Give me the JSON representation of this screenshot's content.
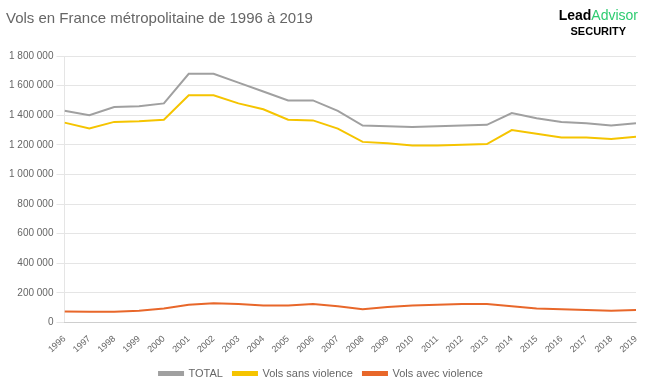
{
  "chart_data": {
    "type": "line",
    "title": "Vols en France métropolitaine de 1996 à 2019",
    "x": [
      1996,
      1997,
      1998,
      1999,
      2000,
      2001,
      2002,
      2003,
      2004,
      2005,
      2006,
      2007,
      2008,
      2009,
      2010,
      2011,
      2012,
      2013,
      2014,
      2015,
      2016,
      2017,
      2018,
      2019
    ],
    "series": [
      {
        "name": "TOTAL",
        "color": "#a0a0a0",
        "values": [
          1430000,
          1400000,
          1455000,
          1460000,
          1480000,
          1680000,
          1680000,
          1620000,
          1560000,
          1500000,
          1500000,
          1430000,
          1330000,
          1325000,
          1320000,
          1325000,
          1330000,
          1335000,
          1415000,
          1380000,
          1355000,
          1345000,
          1330000,
          1345000
        ]
      },
      {
        "name": "Vols sans violence",
        "color": "#f5c400",
        "values": [
          1350000,
          1310000,
          1355000,
          1360000,
          1370000,
          1535000,
          1535000,
          1480000,
          1440000,
          1370000,
          1365000,
          1310000,
          1220000,
          1210000,
          1195000,
          1195000,
          1200000,
          1205000,
          1300000,
          1275000,
          1250000,
          1250000,
          1240000,
          1255000
        ]
      },
      {
        "name": "Vols avec violence",
        "color": "#e8672a",
        "values": [
          75000,
          72000,
          72000,
          80000,
          95000,
          120000,
          130000,
          125000,
          115000,
          115000,
          125000,
          110000,
          90000,
          105000,
          115000,
          120000,
          125000,
          125000,
          110000,
          95000,
          90000,
          85000,
          80000,
          85000
        ]
      }
    ],
    "xlim": [
      1996,
      2019
    ],
    "xticks": [
      1996,
      1997,
      1998,
      1999,
      2000,
      2001,
      2002,
      2003,
      2004,
      2005,
      2006,
      2007,
      2008,
      2009,
      2010,
      2011,
      2012,
      2013,
      2014,
      2015,
      2016,
      2017,
      2018,
      2019
    ],
    "ylim": [
      0,
      1800000
    ],
    "yticks": [
      0,
      {
        "value": 200000,
        "label": "200 000"
      },
      {
        "value": 400000,
        "label": "400 000"
      },
      {
        "value": 600000,
        "label": "600 000"
      },
      {
        "value": 800000,
        "label": "800 000"
      },
      {
        "value": 1000000,
        "label": "1 000 000"
      },
      {
        "value": 1200000,
        "label": "1 200 000"
      },
      {
        "value": 1400000,
        "label": "1 400 000"
      },
      {
        "value": 1600000,
        "label": "1 600 000"
      },
      {
        "value": 1800000,
        "label": "1 800 000"
      }
    ],
    "grid": "y",
    "legend": "bottom",
    "annotations": [
      {
        "text": "Lead",
        "color": "#000000"
      },
      {
        "text": "Advisor",
        "color": "#2ecc71"
      },
      {
        "text": "SECURITY",
        "color": "#000000"
      }
    ]
  }
}
